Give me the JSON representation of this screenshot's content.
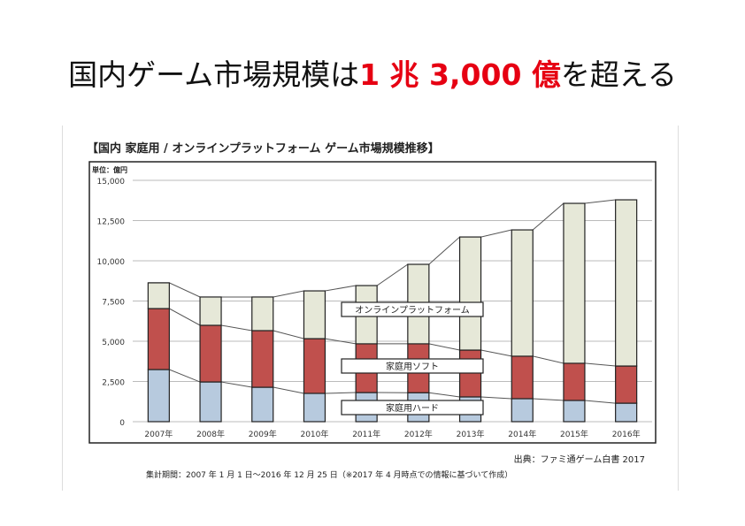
{
  "slide": {
    "title_pre": "国内ゲーム市場規模は",
    "title_highlight": "1 兆 3,000 億",
    "title_post": "を超える",
    "highlight_color": "#e60012"
  },
  "chart_data": {
    "type": "bar",
    "stacked": true,
    "title": "【国内 家庭用 / オンラインプラットフォーム ゲーム市場規模推移】",
    "unit_label": "単位：億円",
    "categories": [
      "2007年",
      "2008年",
      "2009年",
      "2010年",
      "2011年",
      "2012年",
      "2013年",
      "2014年",
      "2015年",
      "2016年"
    ],
    "ylim": [
      0,
      15000
    ],
    "yticks": [
      "0",
      "2,500",
      "5,000",
      "7,500",
      "10,000",
      "12,500",
      "15,000"
    ],
    "ytick_values": [
      0,
      2500,
      5000,
      7500,
      10000,
      12500,
      15000
    ],
    "grid": true,
    "series": [
      {
        "name": "家庭用ハード",
        "color": "#b7cade",
        "values": [
          3240,
          2470,
          2140,
          1760,
          1810,
          1800,
          1540,
          1430,
          1320,
          1150
        ]
      },
      {
        "name": "家庭用ソフト",
        "color": "#c0504d",
        "values": [
          3790,
          3520,
          3520,
          3400,
          3030,
          3040,
          2910,
          2640,
          2310,
          2310
        ]
      },
      {
        "name": "オンラインプラットフォーム",
        "color": "#e6e8d8",
        "values": [
          1600,
          1760,
          2090,
          2970,
          3620,
          4940,
          7030,
          7850,
          9940,
          10330
        ]
      }
    ],
    "legend_placement": "inline-center"
  },
  "source": "出典：ファミ通ゲーム白書 2017",
  "period": "集計期間：2007 年 1 月 1 日～2016 年 12 月 25 日（※2017 年 4 月時点での情報に基づいて作成）"
}
